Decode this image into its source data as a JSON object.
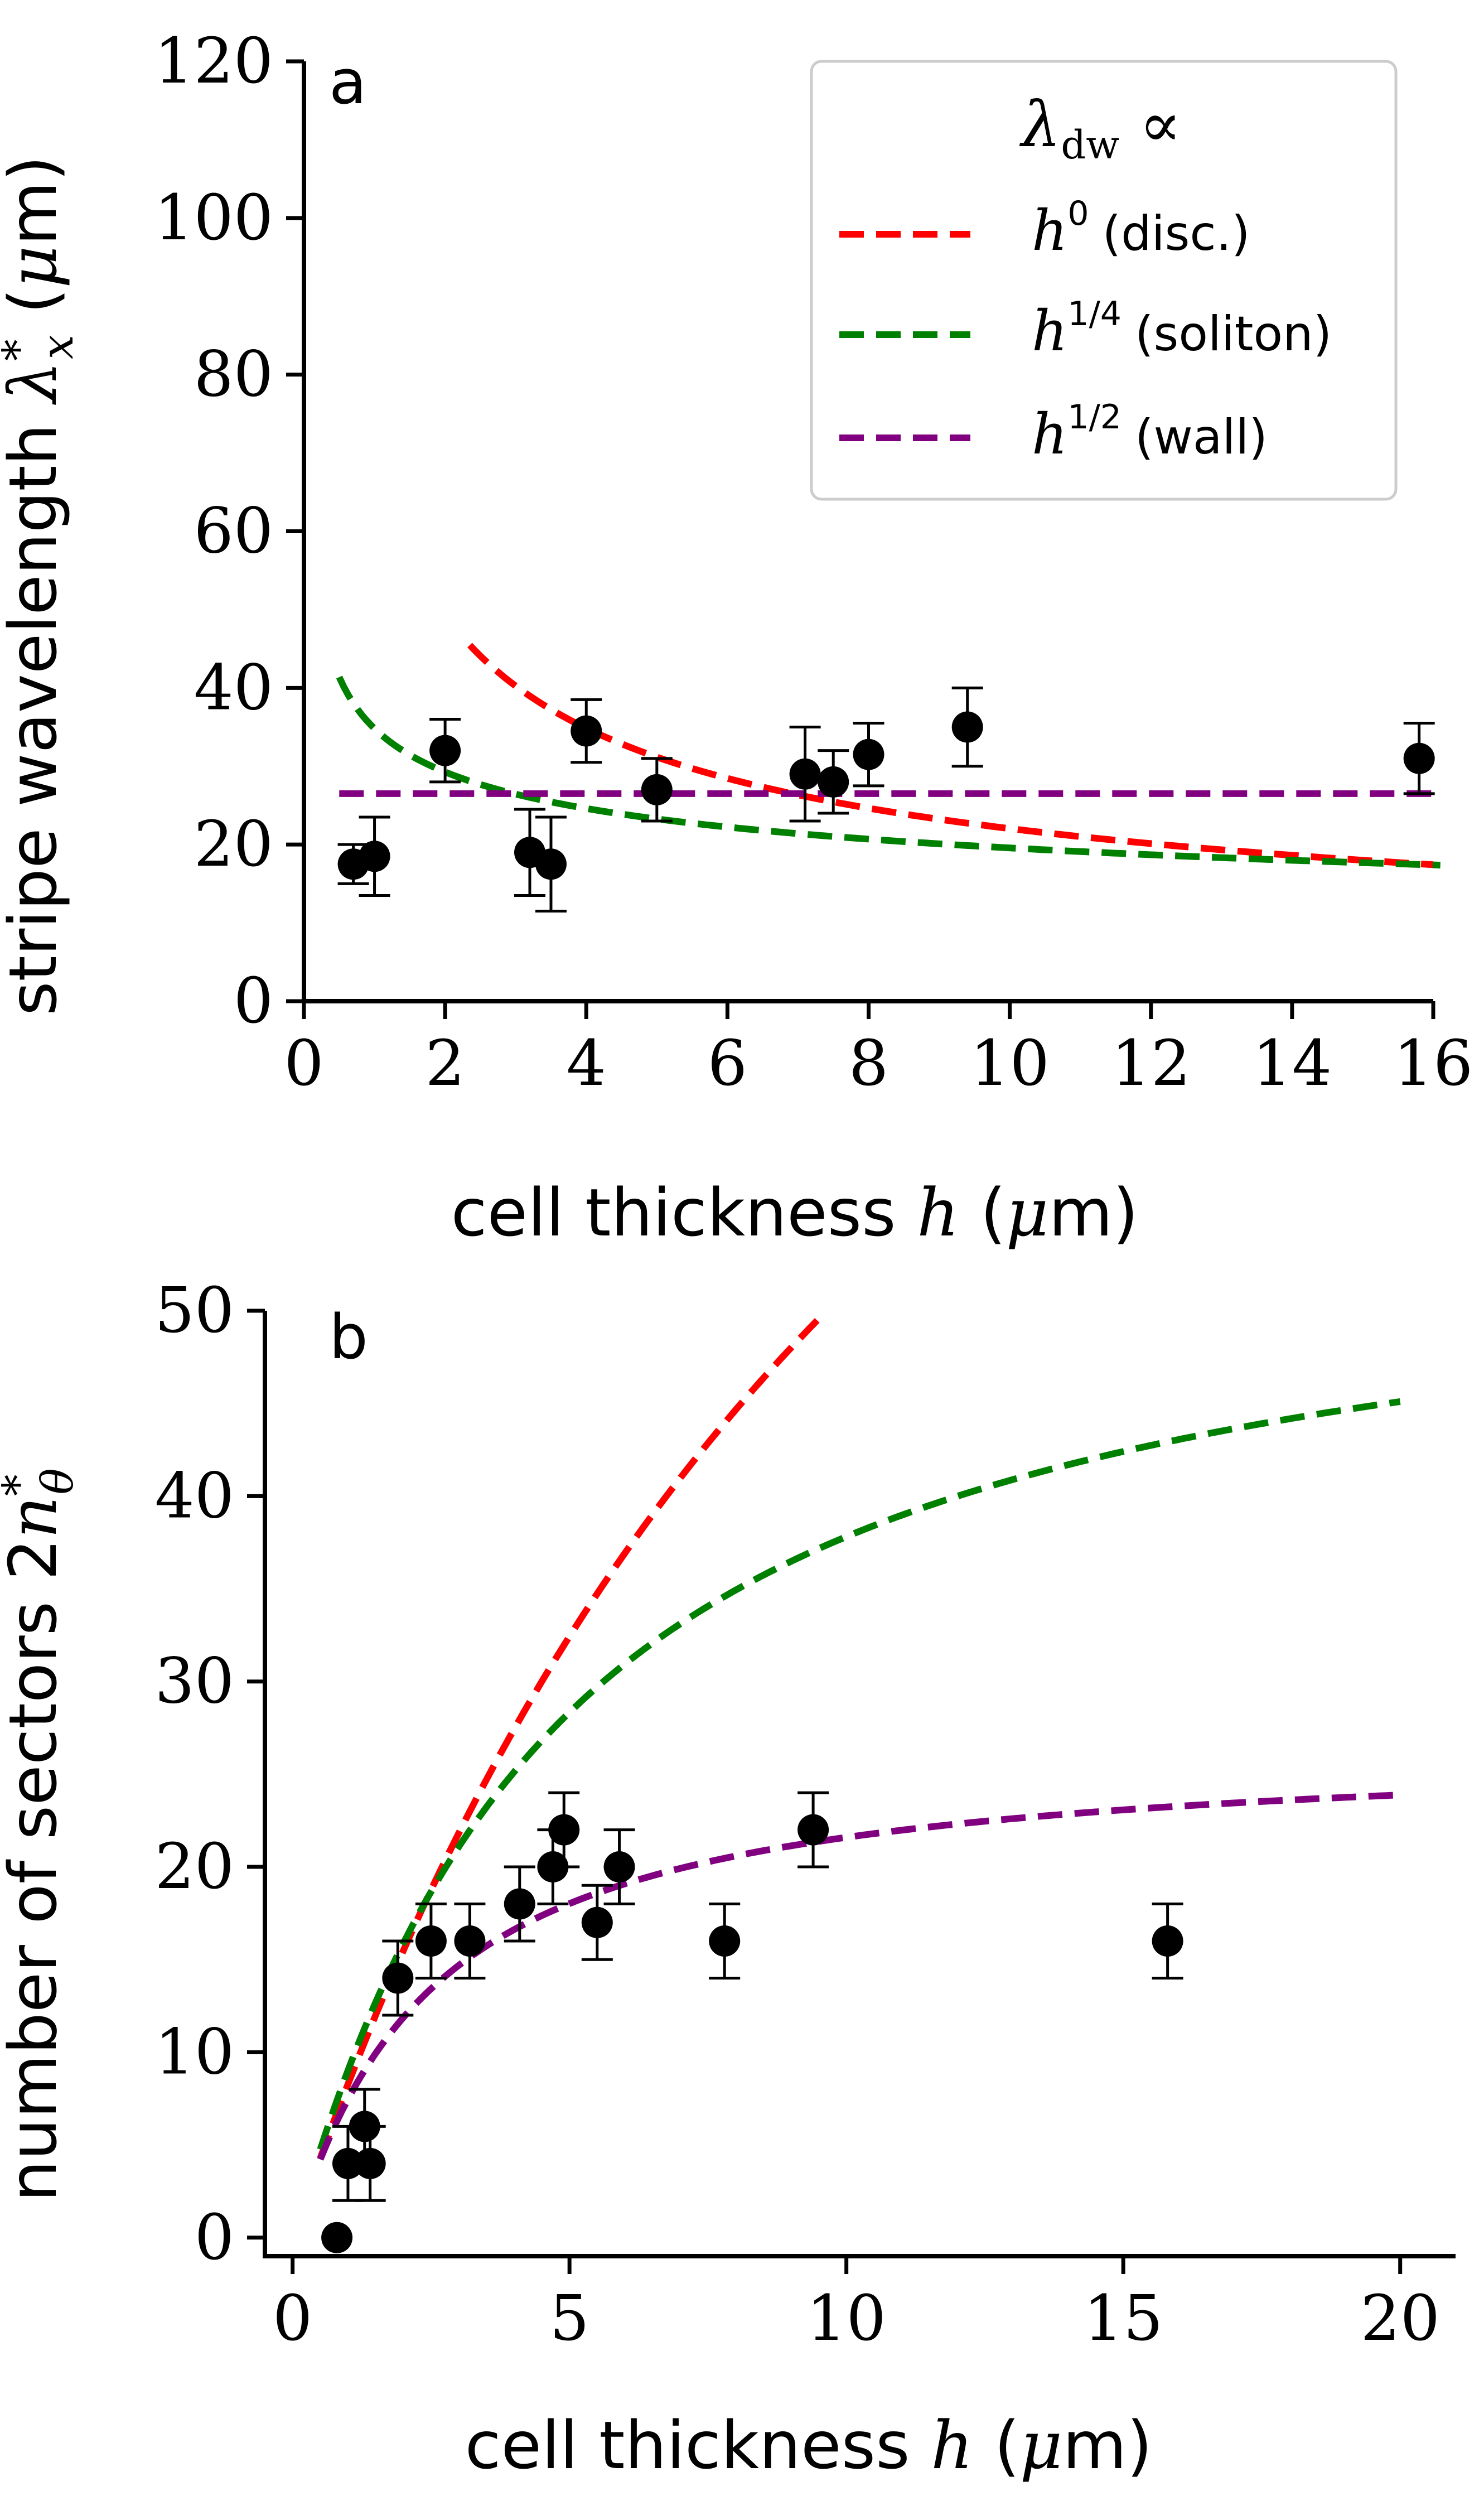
{
  "chart_data": [
    {
      "type": "scatter",
      "panel_label": "a",
      "title": "",
      "xlabel": "cell thickness h (μm)",
      "ylabel": "stripe wavelength λ*x (μm)",
      "xlim": [
        0,
        16
      ],
      "ylim": [
        0,
        120
      ],
      "xticks": [
        0,
        2,
        4,
        6,
        8,
        10,
        12,
        14,
        16
      ],
      "yticks": [
        0,
        20,
        40,
        60,
        80,
        100,
        120
      ],
      "legend": {
        "title": "λdw ∝",
        "placement": "top-right",
        "entries": [
          {
            "math": "h",
            "sup": "0",
            "text": "(disc.)",
            "color": "#ff0000"
          },
          {
            "math": "h",
            "sup": "1/4",
            "text": "(soliton)",
            "color": "#008000"
          },
          {
            "math": "h",
            "sup": "1/2",
            "text": "(wall)",
            "color": "#800080"
          }
        ]
      },
      "points": [
        {
          "x": 0.7,
          "y": 17.5,
          "err": 2.5
        },
        {
          "x": 1.0,
          "y": 18.5,
          "err": 5.0
        },
        {
          "x": 2.0,
          "y": 32.0,
          "err": 4.0
        },
        {
          "x": 3.2,
          "y": 19.0,
          "err": 5.5
        },
        {
          "x": 3.5,
          "y": 17.5,
          "err": 6.0
        },
        {
          "x": 4.0,
          "y": 34.5,
          "err": 4.0
        },
        {
          "x": 5.0,
          "y": 27.0,
          "err": 4.0
        },
        {
          "x": 7.1,
          "y": 29.0,
          "err": 6.0
        },
        {
          "x": 7.5,
          "y": 28.0,
          "err": 4.0
        },
        {
          "x": 8.0,
          "y": 31.5,
          "err": 4.0
        },
        {
          "x": 9.4,
          "y": 35.0,
          "err": 5.0
        },
        {
          "x": 15.8,
          "y": 31.0,
          "err": 4.5
        }
      ],
      "series": [
        {
          "name": "disc",
          "color": "#ff0000",
          "model": "power",
          "amp": 69.7,
          "exp": -0.5,
          "xmin": 2.35,
          "xmax": 16
        },
        {
          "name": "soliton",
          "color": "#008000",
          "model": "power",
          "amp": 34.8,
          "exp": -0.25,
          "xmin": 0.5,
          "xmax": 16.1
        },
        {
          "name": "wall",
          "color": "#800080",
          "model": "power",
          "amp": 26.5,
          "exp": 0,
          "xmin": 0.5,
          "xmax": 16.1
        }
      ]
    },
    {
      "type": "scatter",
      "panel_label": "b",
      "title": "",
      "xlabel": "cell thickness h (μm)",
      "ylabel": "number of sectors 2n*θ",
      "xlim": [
        -0.5,
        21
      ],
      "ylim": [
        -1,
        50
      ],
      "xticks": [
        0,
        5,
        10,
        15,
        20
      ],
      "yticks": [
        0,
        10,
        20,
        30,
        40,
        50
      ],
      "points": [
        {
          "x": 0.8,
          "y": 0,
          "err": 0
        },
        {
          "x": 1.0,
          "y": 4,
          "err": 2
        },
        {
          "x": 1.3,
          "y": 6,
          "err": 2
        },
        {
          "x": 1.4,
          "y": 4,
          "err": 2
        },
        {
          "x": 1.9,
          "y": 14,
          "err": 2
        },
        {
          "x": 2.5,
          "y": 16,
          "err": 2
        },
        {
          "x": 3.2,
          "y": 16,
          "err": 2
        },
        {
          "x": 4.1,
          "y": 18,
          "err": 2
        },
        {
          "x": 4.7,
          "y": 20,
          "err": 2
        },
        {
          "x": 4.9,
          "y": 22,
          "err": 2
        },
        {
          "x": 5.5,
          "y": 17,
          "err": 2
        },
        {
          "x": 5.9,
          "y": 20,
          "err": 2
        },
        {
          "x": 7.8,
          "y": 16,
          "err": 2
        },
        {
          "x": 9.4,
          "y": 22,
          "err": 2
        },
        {
          "x": 15.8,
          "y": 16,
          "err": 2
        }
      ],
      "series": [
        {
          "name": "disc",
          "color": "#ff0000",
          "model": "sat",
          "A": 120,
          "c": 13.5,
          "p": 1.0,
          "xmin": 0.5,
          "xmax": 9.65
        },
        {
          "name": "soliton",
          "color": "#008000",
          "model": "sat",
          "A": 55,
          "c": 5.1,
          "p": 1.05,
          "xmin": 0.5,
          "xmax": 20
        },
        {
          "name": "wall",
          "color": "#800080",
          "model": "sat",
          "A": 26.5,
          "c": 2.55,
          "p": 1.05,
          "xmin": 0.5,
          "xmax": 20
        }
      ]
    }
  ]
}
